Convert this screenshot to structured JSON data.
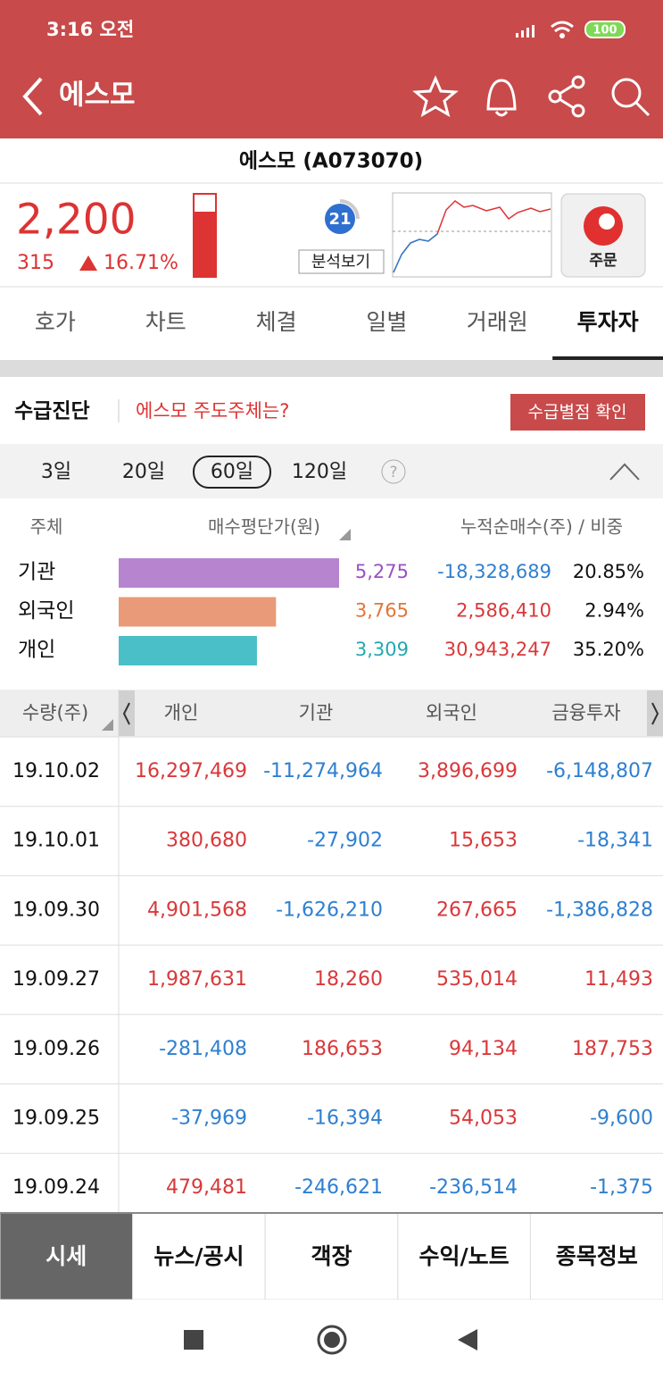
{
  "status_bar": {
    "time": "3:16 오전",
    "battery": "100"
  },
  "app_bar": {
    "title": "에스모"
  },
  "stock": {
    "name": "에스모 (A073070)",
    "price": "2,200",
    "change": "315",
    "change_pct": "16.71%",
    "analysis_score": "21",
    "analysis_label": "분석보기",
    "order_label": "주문"
  },
  "tabs": {
    "items": [
      "호가",
      "차트",
      "체결",
      "일별",
      "거래원",
      "투자자"
    ],
    "active": 5
  },
  "diagnosis": {
    "title": "수급진단",
    "link": "에스모 주도주체는?",
    "button": "수급별점 확인"
  },
  "periods": {
    "items": [
      "3일",
      "20일",
      "60일",
      "120일"
    ],
    "selected": 2,
    "help": "?"
  },
  "summary": {
    "headers": [
      "주체",
      "매수평단가(원)",
      "누적순매수(주) / 비중"
    ],
    "rows": [
      {
        "name": "기관",
        "avg_price": 5275,
        "avg_price_label": "5,275",
        "net_buy": "-18,328,689",
        "share": "20.85%",
        "color": "#b784d0",
        "label_color": "#9b4fc4"
      },
      {
        "name": "외국인",
        "avg_price": 3765,
        "avg_price_label": "3,765",
        "net_buy": "2,586,410",
        "share": "2.94%",
        "color": "#e99a78",
        "label_color": "#e0763a"
      },
      {
        "name": "개인",
        "avg_price": 3309,
        "avg_price_label": "3,309",
        "net_buy": "30,943,247",
        "share": "35.20%",
        "color": "#4bbfc7",
        "label_color": "#22a8b0"
      }
    ]
  },
  "table": {
    "headers": [
      "수량(주)",
      "개인",
      "기관",
      "외국인",
      "금융투자"
    ],
    "rows": [
      {
        "date": "19.10.02",
        "values": [
          "16,297,469",
          "-11,274,964",
          "3,896,699",
          "-6,148,807"
        ]
      },
      {
        "date": "19.10.01",
        "values": [
          "380,680",
          "-27,902",
          "15,653",
          "-18,341"
        ]
      },
      {
        "date": "19.09.30",
        "values": [
          "4,901,568",
          "-1,626,210",
          "267,665",
          "-1,386,828"
        ]
      },
      {
        "date": "19.09.27",
        "values": [
          "1,987,631",
          "18,260",
          "535,014",
          "11,493"
        ]
      },
      {
        "date": "19.09.26",
        "values": [
          "-281,408",
          "186,653",
          "94,134",
          "187,753"
        ]
      },
      {
        "date": "19.09.25",
        "values": [
          "-37,969",
          "-16,394",
          "54,053",
          "-9,600"
        ]
      },
      {
        "date": "19.09.24",
        "values": [
          "479,481",
          "-246,621",
          "-236,514",
          "-1,375"
        ]
      }
    ]
  },
  "bottom_nav": {
    "items": [
      "시세",
      "뉴스/공시",
      "객장",
      "수익/노트",
      "종목정보"
    ],
    "active": 0
  }
}
